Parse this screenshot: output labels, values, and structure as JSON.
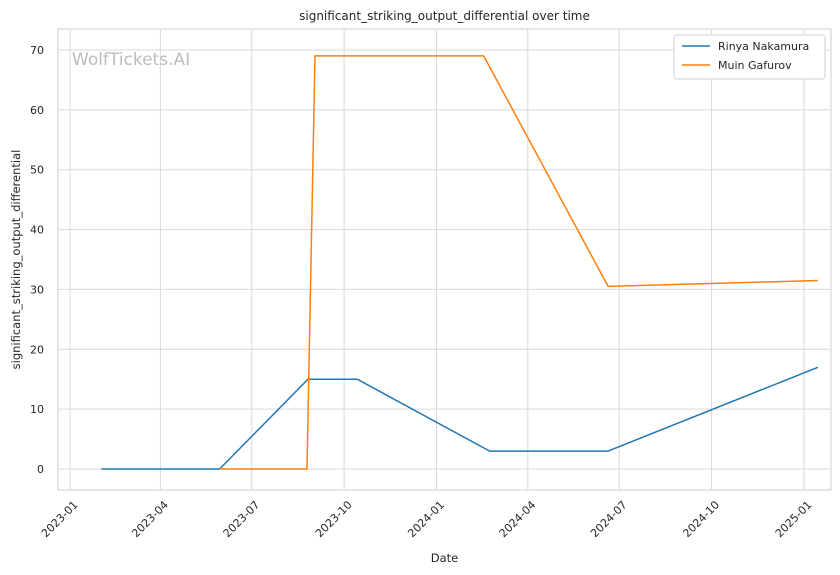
{
  "watermark": "WolfTickets.AI",
  "chart_data": {
    "type": "line",
    "title": "significant_striking_output_differential over time",
    "xlabel": "Date",
    "ylabel": "significant_striking_output_differential",
    "x_ticks": [
      "2023-01",
      "2023-04",
      "2023-07",
      "2023-10",
      "2024-01",
      "2024-04",
      "2024-07",
      "2024-10",
      "2025-01"
    ],
    "y_ticks": [
      0,
      10,
      20,
      30,
      40,
      50,
      60,
      70
    ],
    "xlim": [
      "2022-12-20",
      "2025-01-28"
    ],
    "ylim": [
      -3.5,
      73.5
    ],
    "grid": true,
    "legend_position": "top-right",
    "series": [
      {
        "name": "Rinya Nakamura",
        "color": "#1f77b4",
        "points": [
          {
            "x": "2023-02-01",
            "y": 0
          },
          {
            "x": "2023-05-30",
            "y": 0
          },
          {
            "x": "2023-08-26",
            "y": 15
          },
          {
            "x": "2023-10-14",
            "y": 15
          },
          {
            "x": "2024-02-23",
            "y": 3
          },
          {
            "x": "2024-06-20",
            "y": 3
          },
          {
            "x": "2025-01-15",
            "y": 17
          }
        ]
      },
      {
        "name": "Muin Gafurov",
        "color": "#ff7f0e",
        "points": [
          {
            "x": "2023-05-30",
            "y": 0
          },
          {
            "x": "2023-08-25",
            "y": 0
          },
          {
            "x": "2023-09-02",
            "y": 69
          },
          {
            "x": "2024-02-17",
            "y": 69
          },
          {
            "x": "2024-06-20",
            "y": 30.5
          },
          {
            "x": "2025-01-15",
            "y": 31.5
          }
        ]
      }
    ]
  }
}
